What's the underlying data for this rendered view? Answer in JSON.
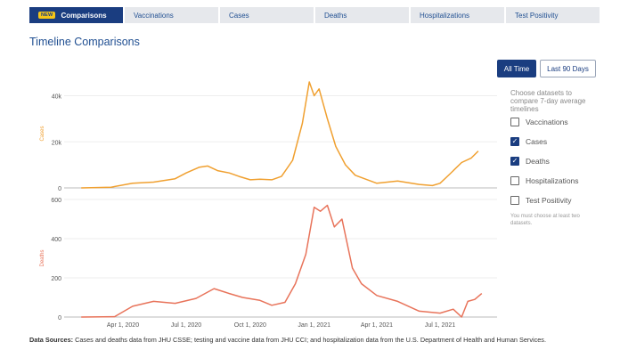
{
  "nav": {
    "tabs": [
      {
        "label": "Comparisons",
        "badge": "NEW",
        "active": true
      },
      {
        "label": "Vaccinations"
      },
      {
        "label": "Cases"
      },
      {
        "label": "Deaths"
      },
      {
        "label": "Hospitalizations"
      },
      {
        "label": "Test Positivity"
      }
    ]
  },
  "page": {
    "title": "Timeline Comparisons"
  },
  "range_buttons": {
    "all_time": "All Time",
    "last_90": "Last 90 Days",
    "selected": "All Time"
  },
  "datasets": {
    "prompt": "Choose datasets to compare 7-day average timelines",
    "options": [
      {
        "label": "Vaccinations",
        "checked": false
      },
      {
        "label": "Cases",
        "checked": true
      },
      {
        "label": "Deaths",
        "checked": true
      },
      {
        "label": "Hospitalizations",
        "checked": false
      },
      {
        "label": "Test Positivity",
        "checked": false
      }
    ],
    "note": "You must choose at least two datasets."
  },
  "footer": {
    "label": "Data Sources:",
    "text": " Cases and deaths data from JHU CSSE; testing and vaccine data from JHU CCI; and hospitalization data from the U.S. Department of Health and Human Services."
  },
  "colors": {
    "cases": "#f0a030",
    "deaths": "#e8735a",
    "accent": "#1a3d80"
  },
  "chart_data": [
    {
      "type": "line",
      "ylabel": "Cases",
      "ylim": [
        0,
        46000
      ],
      "yticks": [
        "0",
        "20k",
        "40k"
      ],
      "ytick_values": [
        0,
        20000,
        40000
      ],
      "x": [
        "2020-02-01",
        "2020-03-15",
        "2020-04-15",
        "2020-05-15",
        "2020-06-15",
        "2020-07-01",
        "2020-07-20",
        "2020-08-01",
        "2020-08-15",
        "2020-09-01",
        "2020-09-15",
        "2020-10-01",
        "2020-10-15",
        "2020-11-01",
        "2020-11-15",
        "2020-12-01",
        "2020-12-15",
        "2020-12-25",
        "2021-01-01",
        "2021-01-08",
        "2021-01-20",
        "2021-02-01",
        "2021-02-15",
        "2021-03-01",
        "2021-04-01",
        "2021-05-01",
        "2021-06-01",
        "2021-06-20",
        "2021-07-01",
        "2021-07-15",
        "2021-08-01",
        "2021-08-15",
        "2021-08-25"
      ],
      "values": [
        0,
        300,
        2000,
        2500,
        4000,
        6500,
        9000,
        9500,
        7500,
        6500,
        5000,
        3500,
        3800,
        3500,
        5000,
        12000,
        28000,
        46000,
        40000,
        43000,
        30000,
        18000,
        10000,
        5500,
        2000,
        3000,
        1500,
        1000,
        2000,
        6000,
        11000,
        13000,
        16000
      ],
      "color": "#f0a030"
    },
    {
      "type": "line",
      "ylabel": "Deaths",
      "ylim": [
        0,
        600
      ],
      "yticks": [
        "0",
        "200",
        "400",
        "600"
      ],
      "ytick_values": [
        0,
        200,
        400,
        600
      ],
      "xticks": [
        "Apr 1, 2020",
        "Jul 1, 2020",
        "Oct 1, 2020",
        "Jan 1, 2021",
        "Apr 1, 2021",
        "Jul 1, 2021"
      ],
      "xtick_values": [
        "2020-04-01",
        "2020-07-01",
        "2020-10-01",
        "2021-01-01",
        "2021-04-01",
        "2021-07-01"
      ],
      "x": [
        "2020-02-01",
        "2020-03-20",
        "2020-04-15",
        "2020-05-15",
        "2020-06-15",
        "2020-07-15",
        "2020-08-10",
        "2020-09-01",
        "2020-09-20",
        "2020-10-15",
        "2020-11-01",
        "2020-11-20",
        "2020-12-05",
        "2020-12-20",
        "2021-01-01",
        "2021-01-10",
        "2021-01-20",
        "2021-01-30",
        "2021-02-10",
        "2021-02-25",
        "2021-03-10",
        "2021-04-01",
        "2021-05-01",
        "2021-06-01",
        "2021-07-01",
        "2021-07-20",
        "2021-08-01",
        "2021-08-10",
        "2021-08-20",
        "2021-08-30"
      ],
      "values": [
        0,
        2,
        55,
        80,
        70,
        95,
        145,
        120,
        100,
        85,
        60,
        75,
        170,
        320,
        560,
        540,
        570,
        460,
        500,
        250,
        170,
        110,
        80,
        30,
        20,
        40,
        0,
        80,
        90,
        120
      ],
      "color": "#e8735a"
    }
  ]
}
